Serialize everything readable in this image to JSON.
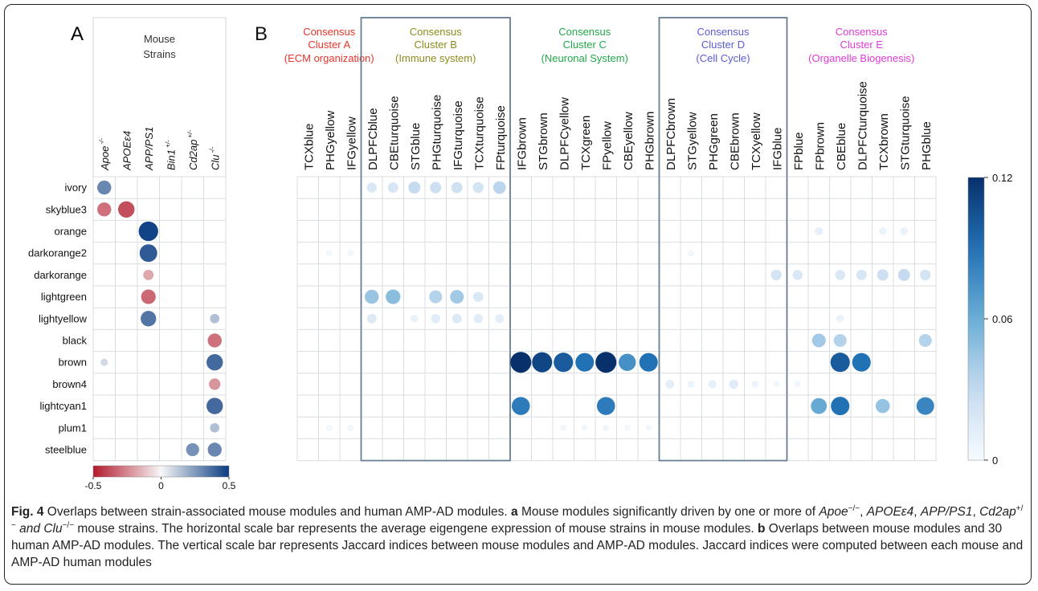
{
  "panel_a": {
    "label": "A",
    "header_line1": "Mouse",
    "header_line2": "Strains",
    "columns": [
      {
        "base": "Apoe",
        "sup": "-/-"
      },
      {
        "base": "APOEε4",
        "sup": ""
      },
      {
        "base": "APP/PS1",
        "sup": ""
      },
      {
        "base": "Bin1",
        "sup": "+/-"
      },
      {
        "base": "Cd2ap",
        "sup": "+/-"
      },
      {
        "base": "Clu",
        "sup": "-/-"
      }
    ],
    "rows": [
      "ivory",
      "skyblue3",
      "orange",
      "darkorange2",
      "darkorange",
      "lightgreen",
      "lightyellow",
      "black",
      "brown",
      "brown4",
      "lightcyan1",
      "plum1",
      "steelblue"
    ],
    "cells": [
      {
        "row": 0,
        "col": 0,
        "value": 0.3
      },
      {
        "row": 1,
        "col": 0,
        "value": -0.3
      },
      {
        "row": 1,
        "col": 1,
        "value": -0.38
      },
      {
        "row": 2,
        "col": 2,
        "value": 0.48
      },
      {
        "row": 3,
        "col": 2,
        "value": 0.42
      },
      {
        "row": 4,
        "col": 2,
        "value": -0.18
      },
      {
        "row": 5,
        "col": 2,
        "value": -0.32
      },
      {
        "row": 6,
        "col": 2,
        "value": 0.35
      },
      {
        "row": 6,
        "col": 5,
        "value": 0.15
      },
      {
        "row": 7,
        "col": 5,
        "value": -0.3
      },
      {
        "row": 8,
        "col": 0,
        "value": 0.08
      },
      {
        "row": 8,
        "col": 5,
        "value": 0.38
      },
      {
        "row": 9,
        "col": 5,
        "value": -0.22
      },
      {
        "row": 10,
        "col": 5,
        "value": 0.38
      },
      {
        "row": 11,
        "col": 5,
        "value": 0.15
      },
      {
        "row": 12,
        "col": 4,
        "value": 0.27
      },
      {
        "row": 12,
        "col": 5,
        "value": 0.3
      }
    ],
    "scale": {
      "min": -0.5,
      "max": 0.5,
      "ticks": [
        "-0.5",
        "0",
        "0.5"
      ]
    }
  },
  "panel_b": {
    "label": "B",
    "clusters": [
      {
        "line1": "Consensus",
        "line2": "Cluster A",
        "line3": "(ECM organization)",
        "color": "#e8352b",
        "start": 0,
        "end": 3,
        "boxed": false
      },
      {
        "line1": "Consensus",
        "line2": "Cluster B",
        "line3": "(Immune system)",
        "color": "#8c8c1c",
        "start": 3,
        "end": 10,
        "boxed": true
      },
      {
        "line1": "Consensus",
        "line2": "Cluster C",
        "line3": "(Neuronal System)",
        "color": "#22a84a",
        "start": 10,
        "end": 17,
        "boxed": false
      },
      {
        "line1": "Consensus",
        "line2": "Cluster D",
        "line3": "(Cell Cycle)",
        "color": "#5b5bd8",
        "start": 17,
        "end": 23,
        "boxed": true
      },
      {
        "line1": "Consensus",
        "line2": "Cluster E",
        "line3": "(Organelle Biogenesis)",
        "color": "#e03ad8",
        "start": 23,
        "end": 30,
        "boxed": false
      }
    ],
    "columns": [
      "TCXblue",
      "PHGyellow",
      "IFGyellow",
      "DLPFCblue",
      "CBEturquoise",
      "STGblue",
      "PHGturquoise",
      "IFGturquoise",
      "TCXturquoise",
      "FPturquoise",
      "IFGbrown",
      "STGbrown",
      "DLPFCyellow",
      "TCXgreen",
      "FPyellow",
      "CBEyellow",
      "PHGbrown",
      "DLPFCbrown",
      "STGyellow",
      "PHGgreen",
      "CBEbrown",
      "TCXyellow",
      "IFGblue",
      "FPblue",
      "FPbrown",
      "CBEblue",
      "DLPFCturquoise",
      "TCXbrown",
      "STGturquoise",
      "PHGblue"
    ],
    "cells": [
      {
        "row": 0,
        "col": 3,
        "value": 0.018
      },
      {
        "row": 0,
        "col": 4,
        "value": 0.02
      },
      {
        "row": 0,
        "col": 5,
        "value": 0.03
      },
      {
        "row": 0,
        "col": 6,
        "value": 0.026
      },
      {
        "row": 0,
        "col": 7,
        "value": 0.024
      },
      {
        "row": 0,
        "col": 8,
        "value": 0.022
      },
      {
        "row": 0,
        "col": 9,
        "value": 0.034
      },
      {
        "row": 2,
        "col": 24,
        "value": 0.01
      },
      {
        "row": 2,
        "col": 27,
        "value": 0.008
      },
      {
        "row": 2,
        "col": 28,
        "value": 0.008
      },
      {
        "row": 3,
        "col": 1,
        "value": 0.004
      },
      {
        "row": 3,
        "col": 2,
        "value": 0.004
      },
      {
        "row": 3,
        "col": 18,
        "value": 0.004
      },
      {
        "row": 4,
        "col": 22,
        "value": 0.022
      },
      {
        "row": 4,
        "col": 23,
        "value": 0.018
      },
      {
        "row": 4,
        "col": 25,
        "value": 0.018
      },
      {
        "row": 4,
        "col": 26,
        "value": 0.02
      },
      {
        "row": 4,
        "col": 27,
        "value": 0.026
      },
      {
        "row": 4,
        "col": 28,
        "value": 0.03
      },
      {
        "row": 4,
        "col": 29,
        "value": 0.022
      },
      {
        "row": 5,
        "col": 3,
        "value": 0.045
      },
      {
        "row": 5,
        "col": 4,
        "value": 0.05
      },
      {
        "row": 5,
        "col": 6,
        "value": 0.036
      },
      {
        "row": 5,
        "col": 7,
        "value": 0.042
      },
      {
        "row": 5,
        "col": 8,
        "value": 0.018
      },
      {
        "row": 6,
        "col": 3,
        "value": 0.016
      },
      {
        "row": 6,
        "col": 5,
        "value": 0.008
      },
      {
        "row": 6,
        "col": 6,
        "value": 0.014
      },
      {
        "row": 6,
        "col": 7,
        "value": 0.016
      },
      {
        "row": 6,
        "col": 8,
        "value": 0.014
      },
      {
        "row": 6,
        "col": 9,
        "value": 0.012
      },
      {
        "row": 6,
        "col": 25,
        "value": 0.008
      },
      {
        "row": 7,
        "col": 24,
        "value": 0.042
      },
      {
        "row": 7,
        "col": 25,
        "value": 0.036
      },
      {
        "row": 7,
        "col": 29,
        "value": 0.036
      },
      {
        "row": 8,
        "col": 10,
        "value": 0.12
      },
      {
        "row": 8,
        "col": 11,
        "value": 0.11
      },
      {
        "row": 8,
        "col": 12,
        "value": 0.1
      },
      {
        "row": 8,
        "col": 13,
        "value": 0.09
      },
      {
        "row": 8,
        "col": 14,
        "value": 0.12
      },
      {
        "row": 8,
        "col": 15,
        "value": 0.075
      },
      {
        "row": 8,
        "col": 16,
        "value": 0.09
      },
      {
        "row": 8,
        "col": 25,
        "value": 0.1
      },
      {
        "row": 8,
        "col": 26,
        "value": 0.09
      },
      {
        "row": 9,
        "col": 17,
        "value": 0.012
      },
      {
        "row": 9,
        "col": 18,
        "value": 0.006
      },
      {
        "row": 9,
        "col": 19,
        "value": 0.01
      },
      {
        "row": 9,
        "col": 20,
        "value": 0.014
      },
      {
        "row": 9,
        "col": 21,
        "value": 0.006
      },
      {
        "row": 9,
        "col": 22,
        "value": 0.004
      },
      {
        "row": 9,
        "col": 23,
        "value": 0.004
      },
      {
        "row": 10,
        "col": 10,
        "value": 0.085
      },
      {
        "row": 10,
        "col": 14,
        "value": 0.085
      },
      {
        "row": 10,
        "col": 24,
        "value": 0.062
      },
      {
        "row": 10,
        "col": 25,
        "value": 0.09
      },
      {
        "row": 10,
        "col": 27,
        "value": 0.046
      },
      {
        "row": 10,
        "col": 29,
        "value": 0.08
      },
      {
        "row": 11,
        "col": 1,
        "value": 0.004
      },
      {
        "row": 11,
        "col": 2,
        "value": 0.004
      },
      {
        "row": 11,
        "col": 12,
        "value": 0.004
      },
      {
        "row": 11,
        "col": 13,
        "value": 0.004
      },
      {
        "row": 11,
        "col": 14,
        "value": 0.004
      },
      {
        "row": 11,
        "col": 15,
        "value": 0.004
      },
      {
        "row": 11,
        "col": 16,
        "value": 0.004
      }
    ],
    "scale": {
      "min": 0,
      "max": 0.12,
      "ticks": [
        {
          "v": 0.12,
          "t": "0.12"
        },
        {
          "v": 0.06,
          "t": "0.06"
        },
        {
          "v": 0,
          "t": "0"
        }
      ]
    }
  },
  "caption": {
    "fig_label": "Fig. 4",
    "title": " Overlaps between strain-associated mouse modules and human AMP-AD modules. ",
    "a_label": "a",
    "a_text1": " Mouse modules significantly driven by one or more of ",
    "a_gene1": "Apoe",
    "a_gene1_sup": "−/−",
    "a_sep1": ", ",
    "a_gene2": "APOEε4",
    "a_sep2": ", ",
    "a_gene3": "APP/PS1",
    "a_sep3": ", ",
    "a_gene4": "Cd2ap",
    "a_gene4_sup": "+/−",
    "a_and": " and Clu",
    "a_gene5_sup": "−/−",
    "a_text2": " mouse strains. The horizontal scale bar represents the average eigengene expression of mouse strains in mouse modules. ",
    "b_label": "b",
    "b_text": " Overlaps between mouse modules and 30 human AMP-AD modules. The vertical scale bar represents Jaccard indices between mouse modules and AMP-AD modules. Jaccard indices were computed between each mouse and AMP-AD human modules"
  }
}
